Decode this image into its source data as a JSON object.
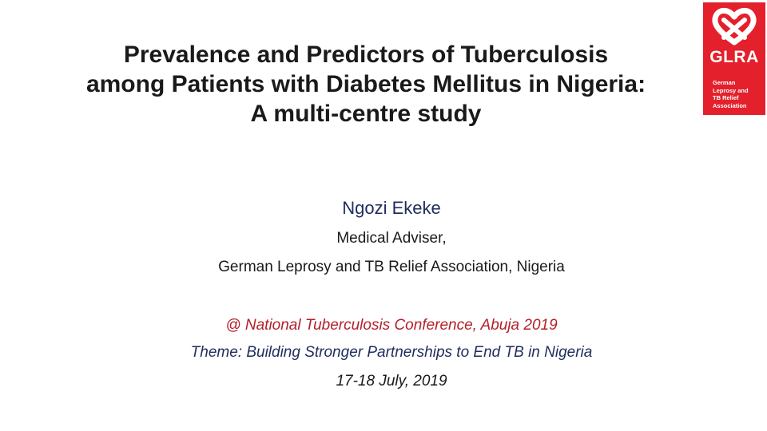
{
  "slide": {
    "title_lines": [
      "Prevalence and Predictors of Tuberculosis",
      "among Patients with Diabetes Mellitus in Nigeria:",
      "A multi-centre study"
    ],
    "author": "Ngozi Ekeke",
    "role": "Medical Adviser,",
    "organization": "German Leprosy and TB Relief Association, Nigeria",
    "conference": "@ National Tuberculosis Conference, Abuja 2019",
    "theme": "Theme: Building Stronger Partnerships to End TB in Nigeria",
    "dates": "17-18 July, 2019"
  },
  "logo": {
    "brand": "GLRA",
    "subtitle_lines": [
      "German",
      "Leprosy and",
      "TB Relief",
      "Association"
    ],
    "icon": "glra-heart-logo-icon",
    "color": "#e3202b"
  }
}
